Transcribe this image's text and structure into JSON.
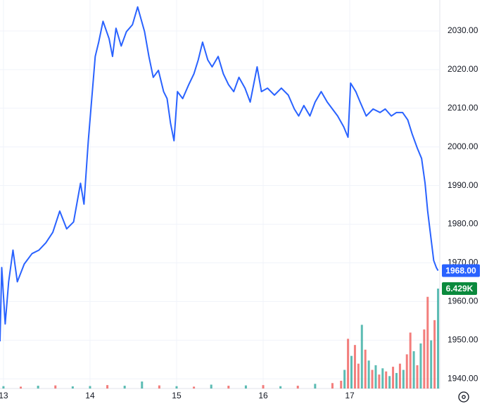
{
  "chart_data": {
    "type": "line",
    "color": "#2962ff",
    "grid": true,
    "xlim": [
      12.96,
      18.04
    ],
    "xticks": [
      13,
      14,
      15,
      16,
      17
    ],
    "ylim": [
      1937.5,
      2038
    ],
    "yticks": [
      {
        "value": 1940,
        "label": "1940.00"
      },
      {
        "value": 1950,
        "label": "1950.00"
      },
      {
        "value": 1960,
        "label": "1960.00"
      },
      {
        "value": 1970,
        "label": "1970.00"
      },
      {
        "value": 1980,
        "label": "1980.00"
      },
      {
        "value": 1990,
        "label": "1990.00"
      },
      {
        "value": 2000,
        "label": "2000.00"
      },
      {
        "value": 2010,
        "label": "2010.00"
      },
      {
        "value": 2020,
        "label": "2020.00"
      },
      {
        "value": 2030,
        "label": "2030.00"
      }
    ],
    "price_label": {
      "value": 1968,
      "label": "1968.00"
    },
    "x": [
      12.96,
      12.98,
      13.02,
      13.06,
      13.11,
      13.16,
      13.24,
      13.33,
      13.41,
      13.49,
      13.57,
      13.65,
      13.73,
      13.81,
      13.89,
      13.93,
      13.98,
      14.02,
      14.06,
      14.1,
      14.15,
      14.22,
      14.26,
      14.3,
      14.36,
      14.42,
      14.49,
      14.55,
      14.63,
      14.68,
      14.73,
      14.79,
      14.85,
      14.89,
      14.93,
      14.97,
      15.01,
      15.07,
      15.14,
      15.2,
      15.25,
      15.3,
      15.36,
      15.41,
      15.48,
      15.54,
      15.6,
      15.66,
      15.72,
      15.79,
      15.85,
      15.93,
      15.98,
      16.05,
      16.13,
      16.21,
      16.29,
      16.36,
      16.41,
      16.47,
      16.54,
      16.6,
      16.67,
      16.74,
      16.8,
      16.86,
      16.93,
      16.98,
      17.01,
      17.07,
      17.12,
      17.19,
      17.27,
      17.35,
      17.41,
      17.48,
      17.54,
      17.61,
      17.67,
      17.72,
      17.78,
      17.83,
      17.87,
      17.9,
      17.93,
      17.97,
      18.0,
      18.02
    ],
    "values": [
      1949.7,
      1968.8,
      1954.2,
      1965.1,
      1973.3,
      1965.1,
      1969.7,
      1972.4,
      1973.3,
      1975.2,
      1977.9,
      1983.4,
      1978.8,
      1980.6,
      1990.6,
      1985.2,
      2001.6,
      2012.5,
      2023.4,
      2027.1,
      2032.5,
      2028.0,
      2023.4,
      2030.7,
      2026.1,
      2029.8,
      2031.6,
      2036.2,
      2029.8,
      2023.4,
      2018.0,
      2019.8,
      2014.3,
      2012.5,
      2006.1,
      2001.6,
      2014.3,
      2012.5,
      2016.1,
      2018.9,
      2022.5,
      2027.1,
      2022.5,
      2020.7,
      2023.4,
      2018.9,
      2016.1,
      2014.3,
      2018.0,
      2015.2,
      2011.6,
      2020.7,
      2014.3,
      2015.2,
      2013.4,
      2015.2,
      2013.4,
      2009.8,
      2008.0,
      2010.7,
      2008.0,
      2011.6,
      2014.3,
      2011.6,
      2009.8,
      2008.0,
      2005.2,
      2002.5,
      2016.5,
      2014.3,
      2011.6,
      2008.0,
      2009.8,
      2008.9,
      2009.8,
      2008.0,
      2008.9,
      2008.9,
      2007.0,
      2003.4,
      1999.7,
      1997.0,
      1990.6,
      1983.4,
      1977.9,
      1970.6,
      1968.8,
      1968.0
    ],
    "volume": {
      "y2lim": [
        0,
        25
      ],
      "label": {
        "value": 6.429,
        "label": "6.429K"
      },
      "up_color": "#26a69a",
      "down_color": "#ef5350",
      "x": [
        13.0,
        13.2,
        13.4,
        13.6,
        13.8,
        14.0,
        14.2,
        14.4,
        14.6,
        14.8,
        15.0,
        15.2,
        15.4,
        15.6,
        15.8,
        16.0,
        16.2,
        16.4,
        16.6,
        16.8,
        16.9,
        16.94,
        16.98,
        17.02,
        17.06,
        17.1,
        17.14,
        17.18,
        17.22,
        17.26,
        17.3,
        17.34,
        17.38,
        17.42,
        17.46,
        17.5,
        17.54,
        17.58,
        17.62,
        17.66,
        17.7,
        17.74,
        17.78,
        17.82,
        17.86,
        17.9,
        17.94,
        17.98,
        18.02
      ],
      "values": [
        0.15,
        0.12,
        0.18,
        0.2,
        0.14,
        0.16,
        0.22,
        0.18,
        0.45,
        0.2,
        0.15,
        0.12,
        0.25,
        0.18,
        0.2,
        0.22,
        0.15,
        0.18,
        0.3,
        0.35,
        0.5,
        1.2,
        3.2,
        2.1,
        2.8,
        1.6,
        4.1,
        2.5,
        1.8,
        1.2,
        1.5,
        0.9,
        1.3,
        1.1,
        0.8,
        1.4,
        1.0,
        1.6,
        1.2,
        2.2,
        3.6,
        2.4,
        1.5,
        2.9,
        3.8,
        5.9,
        3.1,
        4.4,
        6.429
      ],
      "up": [
        true,
        false,
        true,
        false,
        true,
        true,
        false,
        true,
        true,
        false,
        true,
        false,
        true,
        false,
        true,
        false,
        true,
        false,
        true,
        false,
        false,
        true,
        false,
        true,
        false,
        false,
        true,
        false,
        true,
        false,
        true,
        false,
        true,
        false,
        true,
        false,
        true,
        false,
        true,
        false,
        false,
        true,
        false,
        true,
        false,
        false,
        true,
        false,
        true
      ]
    }
  }
}
